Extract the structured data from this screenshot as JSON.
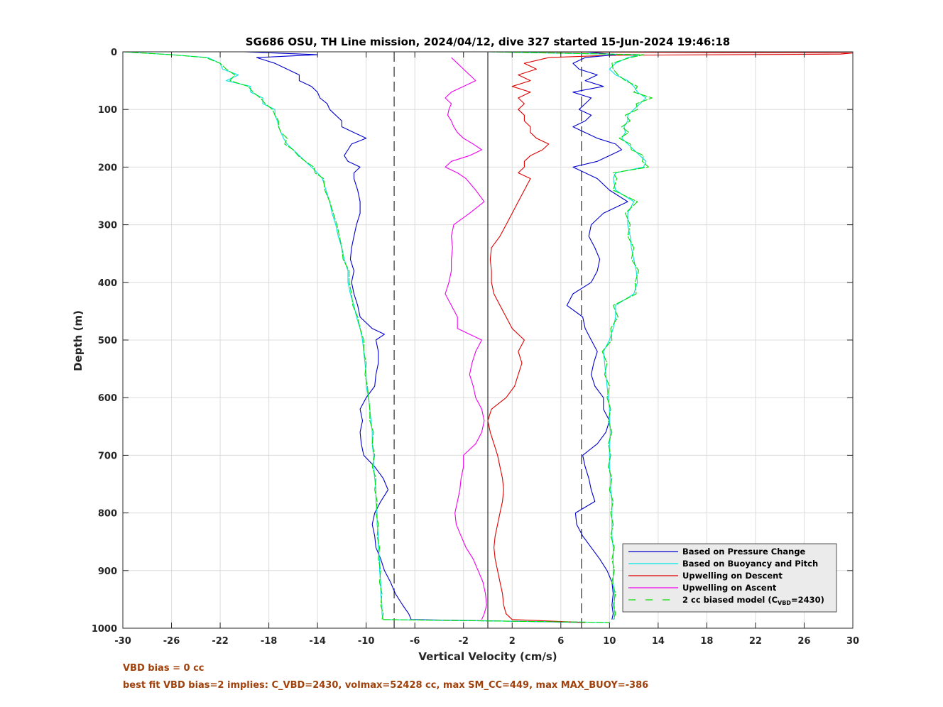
{
  "chart_data": {
    "type": "line",
    "title": "SG686 OSU, TH Line mission, 2024/04/12, dive 327 started 15-Jun-2024 19:46:18",
    "xlabel": "Vertical Velocity (cm/s)",
    "ylabel": "Depth (m)",
    "xlim": [
      -30,
      30
    ],
    "ylim": [
      1000,
      0
    ],
    "y_reversed": true,
    "xticks": [
      -30,
      -26,
      -22,
      -18,
      -14,
      -10,
      -6,
      -2,
      2,
      6,
      10,
      14,
      18,
      22,
      26,
      30
    ],
    "yticks": [
      0,
      100,
      200,
      300,
      400,
      500,
      600,
      700,
      800,
      900,
      1000
    ],
    "grid": true,
    "legend_position": "bottom-right",
    "reference_lines": [
      {
        "x": -7.7,
        "style": "dashed",
        "color": "#000000"
      },
      {
        "x": 0,
        "style": "solid",
        "color": "#000000"
      },
      {
        "x": 7.7,
        "style": "dashed",
        "color": "#000000"
      }
    ],
    "series": [
      {
        "name": "Based on Pressure Change",
        "color": "#0000cc",
        "style": "solid",
        "depth": [
          0,
          5,
          10,
          20,
          30,
          40,
          50,
          60,
          70,
          80,
          90,
          100,
          110,
          120,
          130,
          140,
          150,
          160,
          170,
          180,
          190,
          200,
          210,
          220,
          240,
          260,
          280,
          300,
          320,
          340,
          360,
          380,
          400,
          420,
          440,
          460,
          480,
          490,
          500,
          520,
          540,
          560,
          580,
          600,
          620,
          640,
          660,
          680,
          700,
          720,
          740,
          760,
          780,
          800,
          820,
          840,
          860,
          880,
          900,
          920,
          940,
          960,
          975,
          985,
          990
        ],
        "values": [
          -20,
          -14,
          -19,
          -17.5,
          -16.5,
          -15.5,
          -15.5,
          -14.5,
          -14,
          -13.8,
          -13.2,
          -13,
          -12.5,
          -12,
          -12,
          -11,
          -10,
          -11.2,
          -11.5,
          -11.8,
          -11.5,
          -10.5,
          -11,
          -11,
          -10.7,
          -10.5,
          -10.5,
          -10.8,
          -11,
          -11.2,
          -11.3,
          -11,
          -11.2,
          -11,
          -10.7,
          -10.5,
          -9.5,
          -8.5,
          -9.2,
          -9,
          -9,
          -9.2,
          -9.3,
          -10,
          -10.5,
          -10.3,
          -10.5,
          -10.4,
          -10.2,
          -9.3,
          -8.6,
          -8.2,
          -8.8,
          -9.3,
          -9.5,
          -9.3,
          -9.2,
          -8.8,
          -8.5,
          -8,
          -7.6,
          -7,
          -6.5,
          -6.3,
          8
        ]
      },
      {
        "name": "Based on Buoyancy and Pitch",
        "color": "#00e5e5",
        "style": "solid",
        "depth": [
          0,
          5,
          10,
          20,
          30,
          40,
          50,
          60,
          70,
          80,
          90,
          100,
          110,
          120,
          130,
          140,
          150,
          160,
          170,
          180,
          190,
          200,
          210,
          220,
          240,
          260,
          280,
          300,
          320,
          340,
          360,
          380,
          400,
          420,
          440,
          460,
          480,
          500,
          520,
          540,
          560,
          580,
          600,
          620,
          640,
          660,
          680,
          700,
          720,
          740,
          760,
          780,
          800,
          820,
          840,
          860,
          880,
          900,
          920,
          940,
          960,
          975,
          985,
          990
        ],
        "values": [
          -30,
          -26,
          -23,
          -22,
          -21.8,
          -20.5,
          -21.5,
          -19.5,
          -19.5,
          -18.5,
          -18.5,
          -17.5,
          -17.5,
          -17.3,
          -17.2,
          -17,
          -16.8,
          -16.5,
          -16,
          -15.5,
          -15,
          -14.5,
          -14,
          -13.6,
          -13.3,
          -13,
          -12.8,
          -12.5,
          -12.3,
          -12,
          -11.8,
          -11.5,
          -11.5,
          -11.3,
          -11,
          -10.8,
          -10.5,
          -10.3,
          -10.2,
          -10.1,
          -10,
          -10,
          -9.8,
          -9.7,
          -9.6,
          -9.5,
          -9.5,
          -9.4,
          -9.4,
          -9.3,
          -9.2,
          -9.2,
          -9.1,
          -9.1,
          -9,
          -9,
          -8.9,
          -8.9,
          -8.8,
          -8.8,
          -8.7,
          -8.7,
          -8.6,
          10
        ]
      },
      {
        "name": "Upwelling on Descent",
        "color": "#dd0000",
        "style": "solid",
        "depth": [
          0,
          2,
          4,
          6,
          10,
          20,
          30,
          40,
          50,
          60,
          70,
          80,
          90,
          100,
          110,
          120,
          130,
          140,
          150,
          160,
          170,
          180,
          190,
          200,
          210,
          220,
          240,
          260,
          280,
          300,
          320,
          340,
          360,
          380,
          400,
          420,
          440,
          460,
          480,
          500,
          520,
          540,
          560,
          580,
          600,
          620,
          640,
          660,
          680,
          700,
          720,
          740,
          760,
          780,
          800,
          820,
          840,
          860,
          880,
          900,
          920,
          940,
          960,
          975,
          985,
          990
        ],
        "values": [
          0,
          30,
          29,
          10,
          5,
          3,
          4,
          2.5,
          3.5,
          2,
          3.5,
          2.5,
          3,
          2.5,
          3,
          3,
          3.5,
          3.5,
          4,
          5,
          4.5,
          3.5,
          3,
          3,
          2.5,
          3.5,
          3,
          2.5,
          2,
          1.5,
          1,
          0.3,
          0.2,
          0.3,
          0.3,
          0.5,
          1,
          1.5,
          2,
          3,
          2.5,
          2.8,
          2.5,
          2.2,
          1.5,
          0.3,
          0,
          0.2,
          0.5,
          0.8,
          1,
          1.2,
          1.3,
          1.2,
          1,
          0.8,
          0.6,
          0.5,
          0.6,
          0.8,
          1,
          1.2,
          1.3,
          1.5,
          2,
          8
        ]
      },
      {
        "name": "Upwelling on Ascent",
        "color": "#ee00ee",
        "style": "solid",
        "depth": [
          10,
          20,
          30,
          40,
          50,
          60,
          70,
          80,
          90,
          100,
          110,
          120,
          130,
          140,
          150,
          160,
          170,
          180,
          190,
          200,
          210,
          220,
          240,
          260,
          280,
          300,
          320,
          340,
          360,
          380,
          400,
          420,
          440,
          460,
          480,
          500,
          520,
          540,
          560,
          580,
          600,
          620,
          640,
          660,
          680,
          700,
          720,
          740,
          760,
          780,
          800,
          820,
          840,
          860,
          880,
          900,
          920,
          940,
          960,
          975,
          985
        ],
        "values": [
          -3,
          -2.5,
          -2,
          -1.5,
          -1,
          -2,
          -3,
          -3.5,
          -3,
          -3.2,
          -3.3,
          -3,
          -2.8,
          -2.5,
          -2,
          -1.2,
          -0.5,
          -1.5,
          -3,
          -3.5,
          -2.5,
          -1.8,
          -1,
          -0.3,
          -1.5,
          -2.8,
          -3,
          -2.9,
          -3,
          -3,
          -3.2,
          -3.5,
          -3,
          -2.5,
          -2.5,
          -0.5,
          -1,
          -1.3,
          -1.5,
          -1.2,
          -1,
          -0.5,
          -0.3,
          -0.5,
          -1,
          -2,
          -2,
          -2.2,
          -2.3,
          -2.5,
          -2.7,
          -2.6,
          -2.2,
          -1.8,
          -1.2,
          -0.8,
          -0.4,
          -0.2,
          -0.1,
          -0.3,
          -0.5
        ]
      },
      {
        "name": "2 cc biased model (C_VBD=2430)",
        "color": "#00dd00",
        "style": "dashed",
        "depth": [
          0,
          5,
          10,
          20,
          30,
          40,
          50,
          60,
          70,
          80,
          90,
          100,
          110,
          120,
          130,
          140,
          150,
          160,
          170,
          180,
          190,
          200,
          210,
          220,
          240,
          260,
          280,
          300,
          320,
          340,
          360,
          380,
          400,
          420,
          440,
          460,
          480,
          500,
          520,
          540,
          560,
          580,
          600,
          620,
          640,
          660,
          680,
          700,
          720,
          740,
          760,
          780,
          800,
          820,
          840,
          860,
          880,
          900,
          920,
          940,
          960,
          975,
          985,
          990
        ],
        "values": [
          -30,
          -26,
          -23.2,
          -22,
          -21.5,
          -20.8,
          -21.2,
          -19.7,
          -19.3,
          -18.7,
          -18.3,
          -17.7,
          -17.5,
          -17.2,
          -17.2,
          -17,
          -16.5,
          -16.7,
          -16,
          -15.6,
          -15,
          -14.3,
          -14.2,
          -13.5,
          -13.4,
          -13,
          -12.7,
          -12.4,
          -12.2,
          -12,
          -11.9,
          -11.4,
          -11.4,
          -11.2,
          -11.1,
          -10.7,
          -10.5,
          -10.2,
          -10.2,
          -10,
          -10.1,
          -9.9,
          -9.8,
          -9.7,
          -9.7,
          -9.4,
          -9.5,
          -9.3,
          -9.5,
          -9.2,
          -9.3,
          -9.1,
          -9.2,
          -9,
          -9.1,
          -8.9,
          -9,
          -8.8,
          -8.9,
          -8.7,
          -8.8,
          -8.6,
          -8.7,
          10
        ]
      },
      {
        "name": "",
        "color": "#0000cc",
        "style": "solid",
        "depth": [
          0,
          5,
          10,
          20,
          30,
          40,
          50,
          60,
          70,
          80,
          90,
          100,
          110,
          120,
          130,
          140,
          150,
          160,
          170,
          180,
          190,
          200,
          210,
          220,
          240,
          260,
          280,
          300,
          320,
          340,
          360,
          380,
          400,
          420,
          440,
          460,
          480,
          500,
          520,
          540,
          560,
          580,
          600,
          620,
          640,
          660,
          680,
          700,
          720,
          740,
          760,
          780,
          800,
          820,
          840,
          860,
          880,
          900,
          920,
          940,
          960,
          975,
          985
        ],
        "values": [
          8,
          10.5,
          8,
          7,
          7.5,
          9,
          8,
          9.5,
          7,
          8.5,
          8,
          7.5,
          8.5,
          8,
          7,
          8,
          9,
          10.5,
          11,
          10,
          9,
          7,
          8,
          9,
          10,
          11.5,
          9.5,
          8.5,
          8.3,
          8.8,
          9.2,
          9,
          8.5,
          7,
          6.5,
          7.8,
          8,
          8.5,
          9,
          8.7,
          8.5,
          8.8,
          9.5,
          9.5,
          10,
          9.7,
          9,
          7.8,
          8,
          8.3,
          8.5,
          8.8,
          7.2,
          7.3,
          7.8,
          8.5,
          9.2,
          9.8,
          10.2,
          10.3,
          10.2,
          10.3,
          10.2
        ]
      },
      {
        "name": "",
        "color": "#00e5e5",
        "style": "solid",
        "depth": [
          0,
          5,
          10,
          20,
          30,
          40,
          50,
          60,
          70,
          80,
          90,
          100,
          110,
          120,
          130,
          140,
          150,
          160,
          170,
          180,
          190,
          200,
          210,
          220,
          240,
          260,
          280,
          300,
          320,
          340,
          360,
          380,
          400,
          420,
          440,
          460,
          480,
          500,
          520,
          540,
          560,
          580,
          600,
          620,
          640,
          660,
          680,
          700,
          720,
          740,
          760,
          780,
          800,
          820,
          840,
          860,
          880,
          900,
          920,
          940,
          960,
          975,
          985
        ],
        "values": [
          0,
          12.5,
          11.5,
          10.5,
          10,
          10.5,
          11.5,
          12,
          12.3,
          13,
          12.5,
          12,
          11.5,
          11.5,
          11.2,
          11.3,
          11,
          11.5,
          12,
          12.5,
          13,
          12.8,
          10.5,
          10.3,
          10.5,
          12,
          11.5,
          11.5,
          11.7,
          11.8,
          12,
          12.2,
          12.3,
          12,
          10.5,
          10.5,
          10.3,
          10,
          9.5,
          9.6,
          9.7,
          9.8,
          9.9,
          10,
          10,
          10.1,
          10,
          10,
          10,
          10.1,
          10.1,
          10.2,
          10.2,
          10.2,
          10.2,
          10.3,
          10.3,
          10.3,
          10.3,
          10.4,
          10.4,
          10.4,
          10.4
        ]
      },
      {
        "name": "",
        "color": "#00dd00",
        "style": "dashed",
        "depth": [
          0,
          5,
          10,
          20,
          30,
          40,
          50,
          60,
          70,
          80,
          90,
          100,
          110,
          120,
          130,
          140,
          150,
          160,
          170,
          180,
          190,
          200,
          210,
          220,
          240,
          260,
          280,
          300,
          320,
          340,
          360,
          380,
          400,
          420,
          440,
          460,
          480,
          500,
          520,
          540,
          560,
          580,
          600,
          620,
          640,
          660,
          680,
          700,
          720,
          740,
          760,
          780,
          800,
          820,
          840,
          860,
          880,
          900,
          920,
          940,
          960,
          975,
          985
        ],
        "values": [
          0,
          12.8,
          11.7,
          10.2,
          10.3,
          10.7,
          11.3,
          12.3,
          12,
          13.5,
          12.2,
          12.3,
          11.3,
          11.7,
          11,
          11.6,
          10.8,
          11.7,
          11.8,
          12.8,
          12.7,
          13.2,
          10.3,
          10.6,
          10.3,
          12.3,
          11.3,
          11.7,
          11.5,
          12,
          11.8,
          12.4,
          12.1,
          12.2,
          10.3,
          10.7,
          10.1,
          10.2,
          9.4,
          9.8,
          9.6,
          10,
          9.8,
          10.1,
          9.9,
          10.2,
          9.9,
          10.1,
          9.9,
          10.2,
          10,
          10.3,
          10.1,
          10.3,
          10.1,
          10.4,
          10.2,
          10.4,
          10.2,
          10.5,
          10.3,
          10.5,
          10.3
        ]
      }
    ]
  },
  "notes": {
    "line1": "VBD bias = 0 cc",
    "line2": "best fit VBD bias=2 implies: C_VBD=2430, volmax=52428 cc, max SM_CC=449, max MAX_BUOY=-386"
  },
  "legend": {
    "items": [
      {
        "label": "Based on Pressure Change",
        "color": "#0000cc",
        "dashed": false
      },
      {
        "label": "Based on Buoyancy and Pitch",
        "color": "#00e5e5",
        "dashed": false
      },
      {
        "label": "Upwelling on Descent",
        "color": "#dd0000",
        "dashed": false
      },
      {
        "label": "Upwelling on Ascent",
        "color": "#ee00ee",
        "dashed": false
      },
      {
        "label": "2 cc biased model (C",
        "sub": "VBD",
        "suffix": "=2430)",
        "color": "#00dd00",
        "dashed": true
      }
    ]
  }
}
